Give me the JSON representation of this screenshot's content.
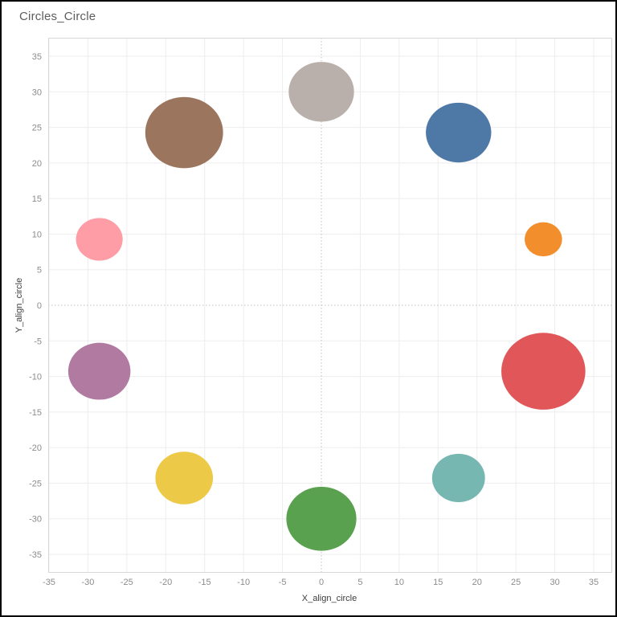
{
  "chart_data": {
    "type": "scatter",
    "title": "Circles_Circle",
    "xlabel": "X_align_circle",
    "ylabel": "Y_align_circle",
    "x_ticks": [
      -35,
      -30,
      -25,
      -20,
      -15,
      -10,
      -5,
      0,
      5,
      10,
      15,
      20,
      25,
      30,
      35
    ],
    "y_ticks": [
      -35,
      -30,
      -25,
      -20,
      -15,
      -10,
      -5,
      0,
      5,
      10,
      15,
      20,
      25,
      30,
      35
    ],
    "xlim": [
      -35.1,
      37.3
    ],
    "ylim": [
      -37.5,
      37.6
    ],
    "grid": true,
    "zero_lines": "dotted",
    "ring_radius": 30,
    "points": [
      {
        "color_name": "blue",
        "x": 17.63,
        "y": 24.27,
        "r": 4.2,
        "color": "#4e79a7"
      },
      {
        "color_name": "orange",
        "x": 28.53,
        "y": 9.27,
        "r": 2.4,
        "color": "#f28e2b"
      },
      {
        "color_name": "red",
        "x": 28.53,
        "y": -9.27,
        "r": 5.4,
        "color": "#e15759"
      },
      {
        "color_name": "teal",
        "x": 17.63,
        "y": -24.27,
        "r": 3.4,
        "color": "#76b7b2"
      },
      {
        "color_name": "green",
        "x": 0,
        "y": -30,
        "r": 4.5,
        "color": "#59a14f"
      },
      {
        "color_name": "yellow",
        "x": -17.63,
        "y": -24.27,
        "r": 3.7,
        "color": "#edc948"
      },
      {
        "color_name": "purple",
        "x": -28.53,
        "y": -9.27,
        "r": 4.0,
        "color": "#b07aa1"
      },
      {
        "color_name": "pink",
        "x": -28.53,
        "y": 9.27,
        "r": 3.0,
        "color": "#ff9da7"
      },
      {
        "color_name": "brown",
        "x": -17.63,
        "y": 24.27,
        "r": 5.0,
        "color": "#9c755f"
      },
      {
        "color_name": "gray",
        "x": 0,
        "y": 30,
        "r": 4.2,
        "color": "#bab0ab"
      }
    ]
  }
}
